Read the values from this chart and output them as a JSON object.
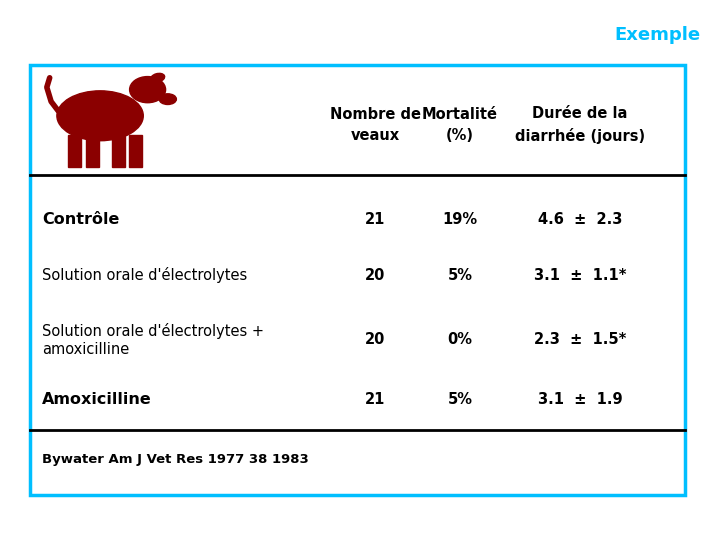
{
  "title": "Exemple",
  "title_color": "#00BFFF",
  "background_color": "#FFFFFF",
  "border_color": "#00BFFF",
  "header_row": [
    "Nombre de\nveaux",
    "Mortalité\n(%)",
    "Durée de la\ndiarrhée (jours)"
  ],
  "rows": [
    {
      "label": "Contrôle",
      "bold": true,
      "nombre": "21",
      "mortalite": "19%",
      "duree": "4.6  ±  2.3"
    },
    {
      "label": "Solution orale d'électrolytes",
      "bold": false,
      "nombre": "20",
      "mortalite": "5%",
      "duree": "3.1  ±  1.1*"
    },
    {
      "label": "Solution orale d'électrolytes +\namoxicilline",
      "bold": false,
      "nombre": "20",
      "mortalite": "0%",
      "duree": "2.3  ±  1.5*"
    },
    {
      "label": "Amoxicilline",
      "bold": true,
      "nombre": "21",
      "mortalite": "5%",
      "duree": "3.1  ±  1.9"
    }
  ],
  "citation": "Bywater Am J Vet Res 1977 38 1983",
  "cow_color": "#8B0000",
  "text_color": "#000000",
  "header_fontsize": 10.5,
  "row_fontsize": 10.5,
  "figsize": [
    7.2,
    5.4
  ]
}
